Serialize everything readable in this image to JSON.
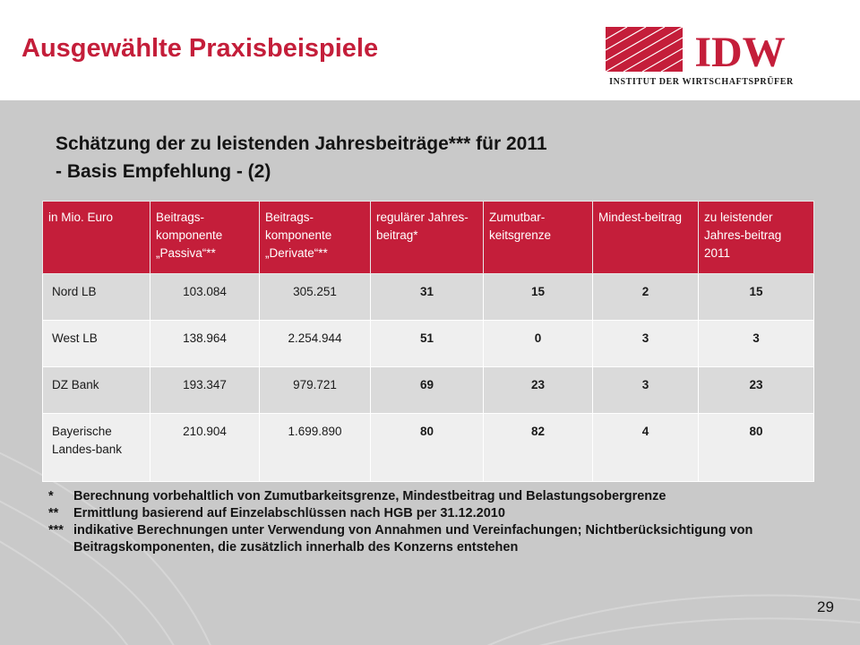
{
  "slide_title": "Ausgewählte Praxisbeispiele",
  "logo": {
    "text": "IDW",
    "tagline": "INSTITUT DER WIRTSCHAFTSPRÜFER",
    "color": "#c41e3a"
  },
  "heading": {
    "line1": "Schätzung der zu leistenden Jahresbeiträge*** für 2011",
    "line2": "- Basis Empfehlung - (2)"
  },
  "table": {
    "columns": [
      "in Mio. Euro",
      "Beitrags-komponente „Passiva“**",
      "Beitrags-komponente „Derivate“**",
      "regulärer Jahres-beitrag*",
      "Zumutbar-keitsgrenze",
      "Mindest-beitrag",
      "zu leistender Jahres-beitrag 2011"
    ],
    "rows": [
      [
        "Nord LB",
        "103.084",
        "305.251",
        "31",
        "15",
        "2",
        "15"
      ],
      [
        "West LB",
        "138.964",
        "2.254.944",
        "51",
        "0",
        "3",
        "3"
      ],
      [
        "DZ Bank",
        "193.347",
        "979.721",
        "69",
        "23",
        "3",
        "23"
      ],
      [
        "Bayerische Landes-bank",
        "210.904",
        "1.699.890",
        "80",
        "82",
        "4",
        "80"
      ]
    ]
  },
  "notes": [
    {
      "mark": "*",
      "text": "Berechnung vorbehaltlich von Zumutbarkeitsgrenze, Mindestbeitrag und Belastungsobergrenze"
    },
    {
      "mark": "**",
      "text": "Ermittlung basierend auf Einzelabschlüssen nach HGB per 31.12.2010"
    },
    {
      "mark": "***",
      "text": "indikative Berechnungen unter Verwendung von Annahmen und Vereinfachungen; Nichtberücksichtigung von Beitragskomponenten, die zusätzlich innerhalb des Konzerns entstehen"
    }
  ],
  "page_number": "29",
  "colors": {
    "accent": "#c41e3a",
    "panel_bg": "#c9c9c9"
  }
}
